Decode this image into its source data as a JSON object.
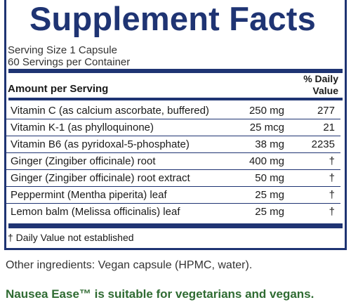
{
  "label": {
    "title": "Supplement Facts",
    "serving_size": "Serving Size 1 Capsule",
    "servings_per_container": "60 Servings per Container",
    "amount_header": "Amount per Serving",
    "dv_header_line1": "% Daily",
    "dv_header_line2": "Value",
    "rows": [
      {
        "name": "Vitamin C (as calcium ascorbate, buffered)",
        "amount": "250 mg",
        "dv": "277"
      },
      {
        "name": "Vitamin K-1 (as phylloquinone)",
        "amount": "25 mcg",
        "dv": "21"
      },
      {
        "name": "Vitamin B6 (as pyridoxal-5-phosphate)",
        "amount": "38 mg",
        "dv": "2235"
      },
      {
        "name": "Ginger (Zingiber officinale) root",
        "amount": "400 mg",
        "dv": "†"
      },
      {
        "name": "Ginger (Zingiber officinale) root extract",
        "amount": "50 mg",
        "dv": "†"
      },
      {
        "name": "Peppermint (Mentha piperita) leaf",
        "amount": "25 mg",
        "dv": "†"
      },
      {
        "name": "Lemon balm (Melissa officinalis) leaf",
        "amount": "25 mg",
        "dv": "†"
      }
    ],
    "footnote": "† Daily Value not established"
  },
  "other_ingredients": "Other ingredients: Vegan capsule (HPMC, water).",
  "claim": "Nausea Ease™ is suitable for vegetarians and vegans.",
  "colors": {
    "panel_blue": "#1f3473",
    "claim_green": "#2f6b32"
  }
}
